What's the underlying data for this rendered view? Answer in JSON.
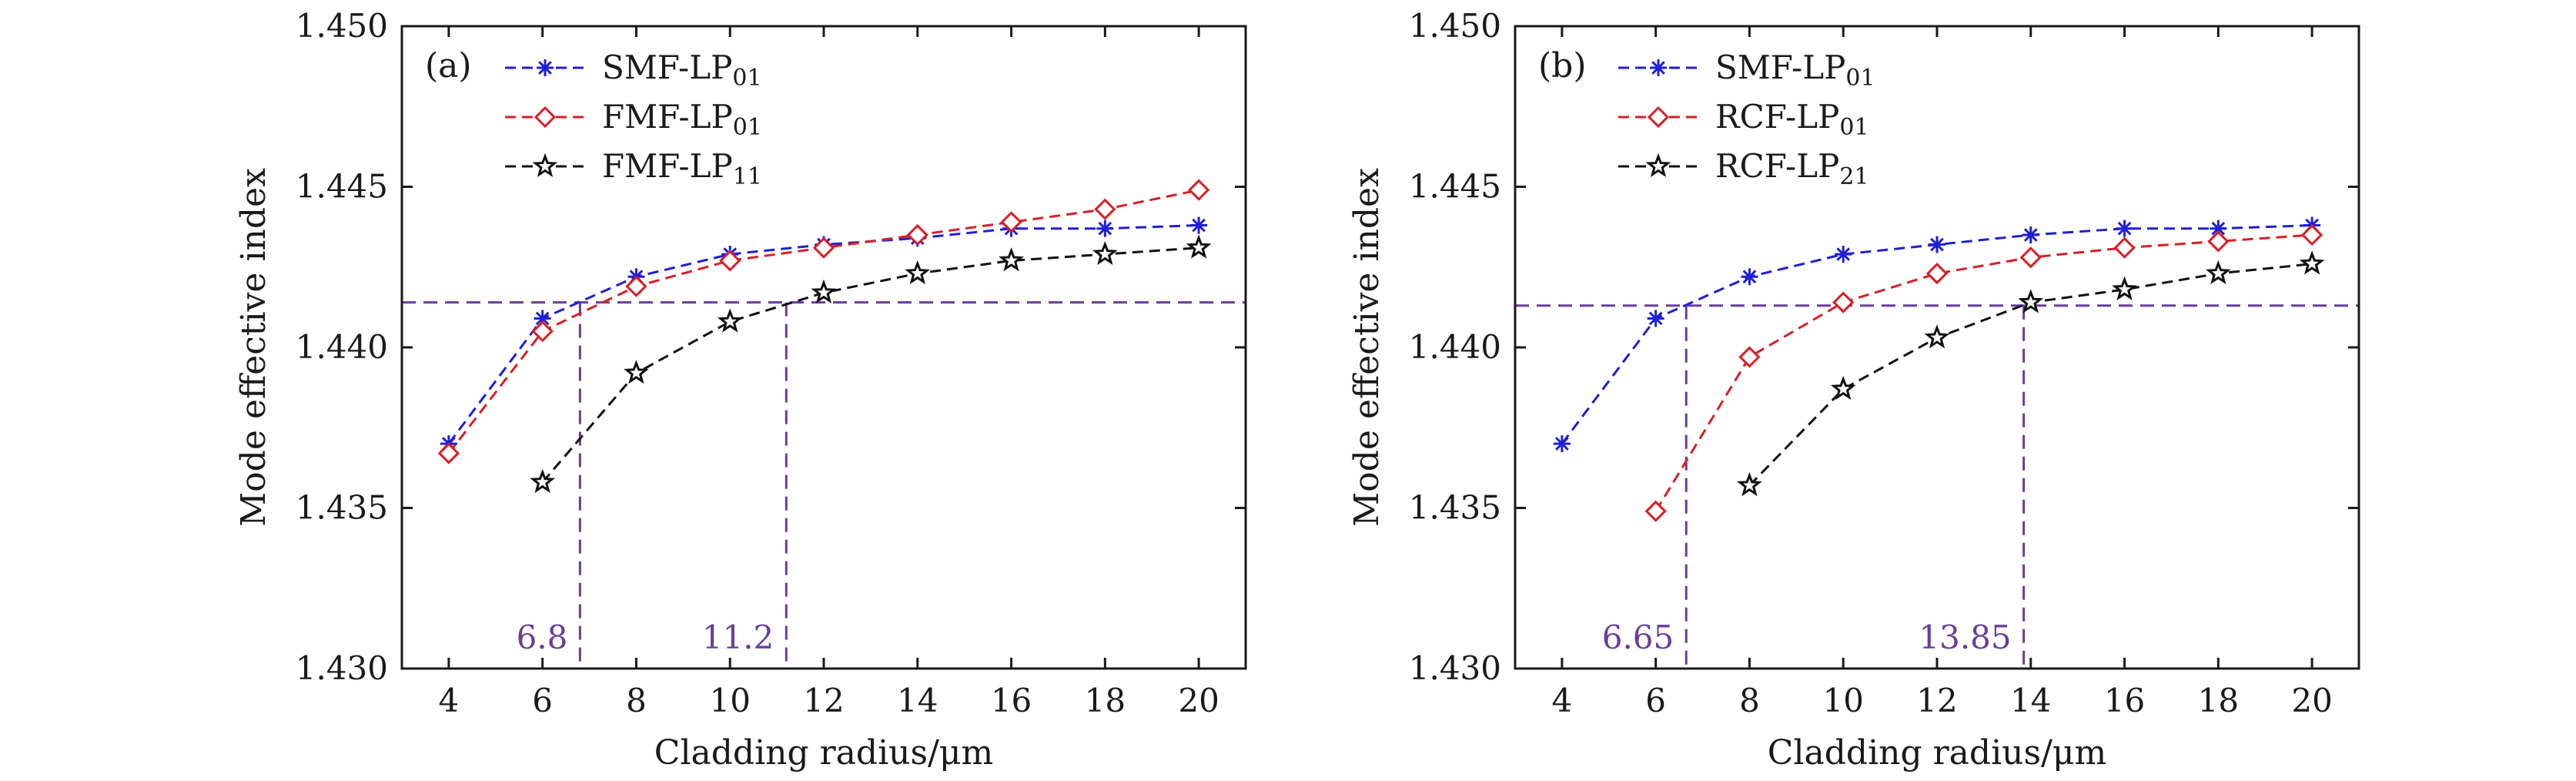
{
  "colors": {
    "blue": "#1f1fd6",
    "red": "#d81f26",
    "black": "#111111",
    "purple": "#6a3d9a"
  },
  "chart_data": [
    {
      "type": "line",
      "panel_label": "(a)",
      "xlabel": "Cladding radius/μm",
      "ylabel": "Mode effective index",
      "xlim": [
        3,
        21
      ],
      "ylim": [
        1.43,
        1.45
      ],
      "xticks": [
        4,
        6,
        8,
        10,
        12,
        14,
        16,
        18,
        20
      ],
      "yticks": [
        "1.430",
        "1.435",
        "1.440",
        "1.445",
        "1.450"
      ],
      "grid": false,
      "legend_position": "top-left",
      "series": [
        {
          "name": "SMF-LP",
          "subscript": "01",
          "color": "blue",
          "marker": "asterisk",
          "x": [
            4,
            6,
            8,
            10,
            12,
            14,
            16,
            18,
            20
          ],
          "y": [
            1.437,
            1.4409,
            1.4422,
            1.4429,
            1.4432,
            1.4434,
            1.4437,
            1.4437,
            1.4438
          ]
        },
        {
          "name": "FMF-LP",
          "subscript": "01",
          "color": "red",
          "marker": "diamond",
          "x": [
            4,
            6,
            8,
            10,
            12,
            14,
            16,
            18,
            20
          ],
          "y": [
            1.4367,
            1.4405,
            1.4419,
            1.4427,
            1.4431,
            1.4435,
            1.4439,
            1.4443,
            1.4449
          ]
        },
        {
          "name": "FMF-LP",
          "subscript": "11",
          "color": "black",
          "marker": "star",
          "x": [
            6,
            8,
            10,
            12,
            14,
            16,
            18,
            20
          ],
          "y": [
            1.4358,
            1.4392,
            1.4408,
            1.4417,
            1.4423,
            1.4427,
            1.4429,
            1.4431
          ]
        }
      ],
      "reference_lines": {
        "y": 1.4414,
        "x": [
          6.8,
          11.2
        ]
      },
      "annotations": [
        "6.8",
        "11.2"
      ]
    },
    {
      "type": "line",
      "panel_label": "(b)",
      "xlabel": "Cladding radius/μm",
      "ylabel": "Mode effective index",
      "xlim": [
        3,
        21
      ],
      "ylim": [
        1.43,
        1.45
      ],
      "xticks": [
        4,
        6,
        8,
        10,
        12,
        14,
        16,
        18,
        20
      ],
      "yticks": [
        "1.430",
        "1.435",
        "1.440",
        "1.445",
        "1.450"
      ],
      "grid": false,
      "legend_position": "top-left",
      "series": [
        {
          "name": "SMF-LP",
          "subscript": "01",
          "color": "blue",
          "marker": "asterisk",
          "x": [
            4,
            6,
            8,
            10,
            12,
            14,
            16,
            18,
            20
          ],
          "y": [
            1.437,
            1.4409,
            1.4422,
            1.4429,
            1.4432,
            1.4435,
            1.4437,
            1.4437,
            1.4438
          ]
        },
        {
          "name": "RCF-LP",
          "subscript": "01",
          "color": "red",
          "marker": "diamond",
          "x": [
            6,
            8,
            10,
            12,
            14,
            16,
            18,
            20
          ],
          "y": [
            1.4349,
            1.4397,
            1.4414,
            1.4423,
            1.4428,
            1.4431,
            1.4433,
            1.4435
          ]
        },
        {
          "name": "RCF-LP",
          "subscript": "21",
          "color": "black",
          "marker": "star",
          "x": [
            8,
            10,
            12,
            14,
            16,
            18,
            20
          ],
          "y": [
            1.4357,
            1.4387,
            1.4403,
            1.4414,
            1.4418,
            1.4423,
            1.4426
          ]
        }
      ],
      "reference_lines": {
        "y": 1.4413,
        "x": [
          6.65,
          13.85
        ]
      },
      "annotations": [
        "6.65",
        "13.85"
      ]
    }
  ]
}
